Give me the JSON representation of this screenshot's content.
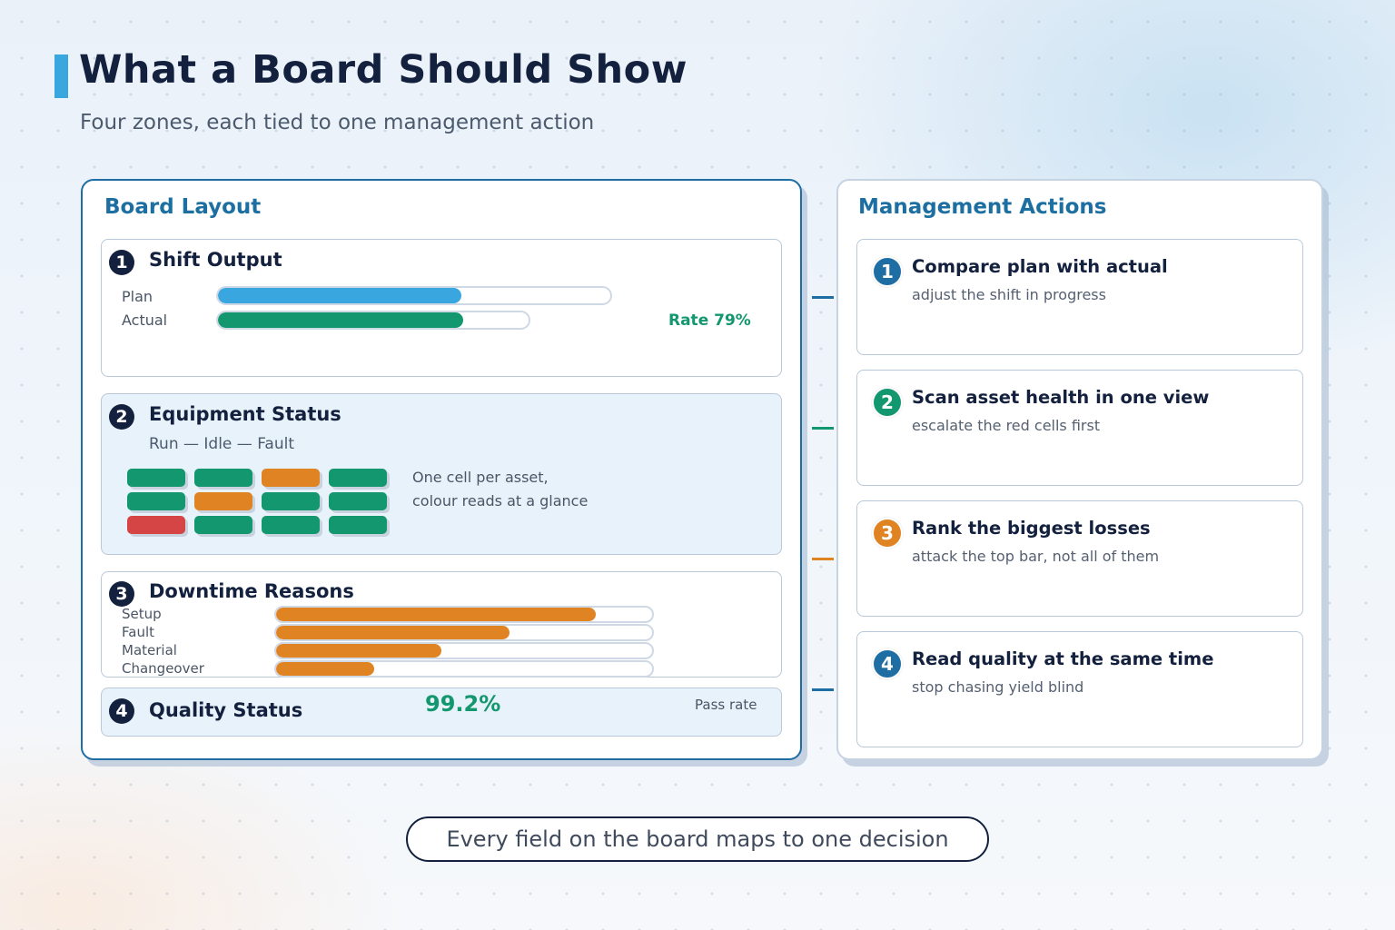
{
  "header": {
    "title": "What a Board Should Show",
    "subtitle": "Four zones, each tied to one management action"
  },
  "colors": {
    "navy": "#13213e",
    "blue": "#3aa6e0",
    "green": "#13976f",
    "orange": "#e08322",
    "red": "#d64545",
    "heading_blue": "#1c6fa0"
  },
  "board_layout": {
    "heading": "Board Layout",
    "shift_output": {
      "number": "1",
      "title": "Shift Output",
      "plan_label": "Plan",
      "actual_label": "Actual",
      "plan_fill_fraction": 0.62,
      "actual_fill_fraction": 0.79,
      "rate_text": "Rate 79%"
    },
    "equipment_status": {
      "number": "2",
      "title": "Equipment Status",
      "legend": "Run — Idle — Fault",
      "note_line1": "One cell per asset,",
      "note_line2": "colour reads at a glance",
      "cells": [
        [
          "run",
          "run",
          "idle",
          "run"
        ],
        [
          "run",
          "idle",
          "run",
          "run"
        ],
        [
          "fault",
          "run",
          "run",
          "run"
        ]
      ]
    },
    "downtime_reasons": {
      "number": "3",
      "title": "Downtime Reasons",
      "reasons": [
        {
          "label": "Setup",
          "value": 0.85
        },
        {
          "label": "Fault",
          "value": 0.62
        },
        {
          "label": "Material",
          "value": 0.44
        },
        {
          "label": "Changeover",
          "value": 0.26
        }
      ]
    },
    "quality_status": {
      "number": "4",
      "title": "Quality Status",
      "value": "99.2%",
      "value_label": "Pass rate"
    }
  },
  "management_actions": {
    "heading": "Management Actions",
    "items": [
      {
        "number": "1",
        "title": "Compare plan with actual",
        "subtitle": "adjust the shift in progress",
        "color": "#1f6ea3"
      },
      {
        "number": "2",
        "title": "Scan asset health in one view",
        "subtitle": "escalate the red cells first",
        "color": "#13976f"
      },
      {
        "number": "3",
        "title": "Rank the biggest losses",
        "subtitle": "attack the top bar, not all of them",
        "color": "#e08322"
      },
      {
        "number": "4",
        "title": "Read quality at the same time",
        "subtitle": "stop chasing yield blind",
        "color": "#1f6ea3"
      }
    ]
  },
  "footer": {
    "text": "Every field on the board maps to one decision"
  }
}
